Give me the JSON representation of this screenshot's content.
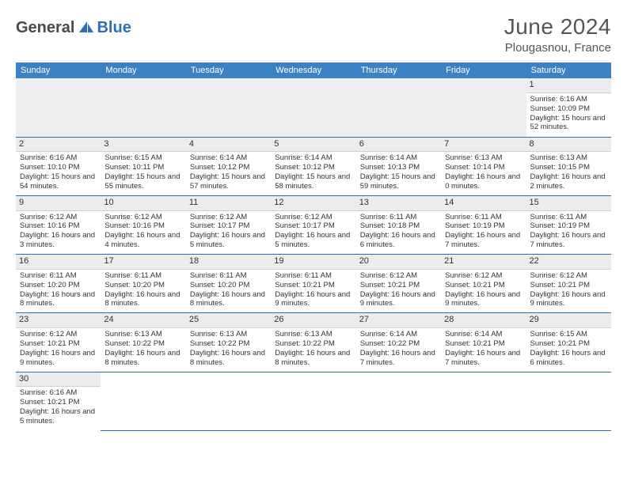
{
  "brand": {
    "part1": "General",
    "part2": "Blue"
  },
  "title": "June 2024",
  "location": "Plougasnou, France",
  "colors": {
    "header_bg": "#3b82c4",
    "border": "#2b6fb5",
    "daynum_bg": "#ececec",
    "brand_blue": "#2b6fb5",
    "text": "#333333"
  },
  "dayHeaders": [
    "Sunday",
    "Monday",
    "Tuesday",
    "Wednesday",
    "Thursday",
    "Friday",
    "Saturday"
  ],
  "weeks": [
    [
      null,
      null,
      null,
      null,
      null,
      null,
      {
        "n": "1",
        "sr": "6:16 AM",
        "ss": "10:09 PM",
        "dl": "15 hours and 52 minutes."
      }
    ],
    [
      {
        "n": "2",
        "sr": "6:16 AM",
        "ss": "10:10 PM",
        "dl": "15 hours and 54 minutes."
      },
      {
        "n": "3",
        "sr": "6:15 AM",
        "ss": "10:11 PM",
        "dl": "15 hours and 55 minutes."
      },
      {
        "n": "4",
        "sr": "6:14 AM",
        "ss": "10:12 PM",
        "dl": "15 hours and 57 minutes."
      },
      {
        "n": "5",
        "sr": "6:14 AM",
        "ss": "10:12 PM",
        "dl": "15 hours and 58 minutes."
      },
      {
        "n": "6",
        "sr": "6:14 AM",
        "ss": "10:13 PM",
        "dl": "15 hours and 59 minutes."
      },
      {
        "n": "7",
        "sr": "6:13 AM",
        "ss": "10:14 PM",
        "dl": "16 hours and 0 minutes."
      },
      {
        "n": "8",
        "sr": "6:13 AM",
        "ss": "10:15 PM",
        "dl": "16 hours and 2 minutes."
      }
    ],
    [
      {
        "n": "9",
        "sr": "6:12 AM",
        "ss": "10:16 PM",
        "dl": "16 hours and 3 minutes."
      },
      {
        "n": "10",
        "sr": "6:12 AM",
        "ss": "10:16 PM",
        "dl": "16 hours and 4 minutes."
      },
      {
        "n": "11",
        "sr": "6:12 AM",
        "ss": "10:17 PM",
        "dl": "16 hours and 5 minutes."
      },
      {
        "n": "12",
        "sr": "6:12 AM",
        "ss": "10:17 PM",
        "dl": "16 hours and 5 minutes."
      },
      {
        "n": "13",
        "sr": "6:11 AM",
        "ss": "10:18 PM",
        "dl": "16 hours and 6 minutes."
      },
      {
        "n": "14",
        "sr": "6:11 AM",
        "ss": "10:19 PM",
        "dl": "16 hours and 7 minutes."
      },
      {
        "n": "15",
        "sr": "6:11 AM",
        "ss": "10:19 PM",
        "dl": "16 hours and 7 minutes."
      }
    ],
    [
      {
        "n": "16",
        "sr": "6:11 AM",
        "ss": "10:20 PM",
        "dl": "16 hours and 8 minutes."
      },
      {
        "n": "17",
        "sr": "6:11 AM",
        "ss": "10:20 PM",
        "dl": "16 hours and 8 minutes."
      },
      {
        "n": "18",
        "sr": "6:11 AM",
        "ss": "10:20 PM",
        "dl": "16 hours and 8 minutes."
      },
      {
        "n": "19",
        "sr": "6:11 AM",
        "ss": "10:21 PM",
        "dl": "16 hours and 9 minutes."
      },
      {
        "n": "20",
        "sr": "6:12 AM",
        "ss": "10:21 PM",
        "dl": "16 hours and 9 minutes."
      },
      {
        "n": "21",
        "sr": "6:12 AM",
        "ss": "10:21 PM",
        "dl": "16 hours and 9 minutes."
      },
      {
        "n": "22",
        "sr": "6:12 AM",
        "ss": "10:21 PM",
        "dl": "16 hours and 9 minutes."
      }
    ],
    [
      {
        "n": "23",
        "sr": "6:12 AM",
        "ss": "10:21 PM",
        "dl": "16 hours and 9 minutes."
      },
      {
        "n": "24",
        "sr": "6:13 AM",
        "ss": "10:22 PM",
        "dl": "16 hours and 8 minutes."
      },
      {
        "n": "25",
        "sr": "6:13 AM",
        "ss": "10:22 PM",
        "dl": "16 hours and 8 minutes."
      },
      {
        "n": "26",
        "sr": "6:13 AM",
        "ss": "10:22 PM",
        "dl": "16 hours and 8 minutes."
      },
      {
        "n": "27",
        "sr": "6:14 AM",
        "ss": "10:22 PM",
        "dl": "16 hours and 7 minutes."
      },
      {
        "n": "28",
        "sr": "6:14 AM",
        "ss": "10:21 PM",
        "dl": "16 hours and 7 minutes."
      },
      {
        "n": "29",
        "sr": "6:15 AM",
        "ss": "10:21 PM",
        "dl": "16 hours and 6 minutes."
      }
    ],
    [
      {
        "n": "30",
        "sr": "6:16 AM",
        "ss": "10:21 PM",
        "dl": "16 hours and 5 minutes."
      },
      null,
      null,
      null,
      null,
      null,
      null
    ]
  ],
  "labels": {
    "sunrise": "Sunrise:",
    "sunset": "Sunset:",
    "daylight": "Daylight:"
  }
}
